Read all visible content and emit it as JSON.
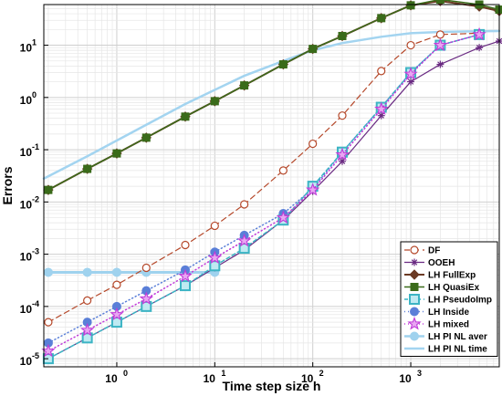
{
  "chart_data": {
    "type": "line",
    "title": "",
    "xlabel": "Time step size h",
    "ylabel": "Errors",
    "x_scale": "log",
    "y_scale": "log",
    "xlim": [
      0.18,
      8000
    ],
    "ylim": [
      7e-06,
      60
    ],
    "grid": true,
    "legend_position": "bottom-right",
    "x_ticks": [
      {
        "value": 1,
        "base": "10",
        "exp": "0"
      },
      {
        "value": 10,
        "base": "10",
        "exp": "1"
      },
      {
        "value": 100,
        "base": "10",
        "exp": "2"
      },
      {
        "value": 1000,
        "base": "10",
        "exp": "3"
      }
    ],
    "y_ticks": [
      {
        "value": 1e-05,
        "base": "10",
        "exp": "-5"
      },
      {
        "value": 0.0001,
        "base": "10",
        "exp": "-4"
      },
      {
        "value": 0.001,
        "base": "10",
        "exp": "-3"
      },
      {
        "value": 0.01,
        "base": "10",
        "exp": "-2"
      },
      {
        "value": 0.1,
        "base": "10",
        "exp": "-1"
      },
      {
        "value": 1,
        "base": "10",
        "exp": "0"
      },
      {
        "value": 10,
        "base": "10",
        "exp": "1"
      }
    ],
    "series": [
      {
        "name": "DF",
        "color": "#b5482a",
        "dash": "6,4",
        "marker": "circle-open",
        "width": 1.2,
        "x": [
          0.2,
          0.5,
          1,
          2,
          5,
          10,
          20,
          50,
          100,
          200,
          500,
          1000,
          2000,
          5000
        ],
        "y": [
          5e-05,
          0.00013,
          0.00026,
          0.00055,
          0.0015,
          0.0035,
          0.009,
          0.04,
          0.13,
          0.45,
          3.2,
          10,
          16,
          17
        ]
      },
      {
        "name": "OOEH",
        "color": "#6a2a82",
        "dash": "",
        "marker": "asterisk",
        "width": 1.2,
        "x": [
          0.2,
          0.5,
          1,
          2,
          5,
          10,
          20,
          50,
          100,
          200,
          500,
          1000,
          2000,
          5000,
          8000
        ],
        "y": [
          1e-05,
          2.5e-05,
          5e-05,
          0.0001,
          0.00025,
          0.00055,
          0.0012,
          0.0045,
          0.016,
          0.06,
          0.45,
          2,
          4.3,
          9,
          12
        ]
      },
      {
        "name": "LH FullExp",
        "color": "#6b3a24",
        "dash": "",
        "marker": "diamond",
        "width": 2,
        "x": [
          0.2,
          0.5,
          1,
          2,
          5,
          10,
          20,
          50,
          100,
          200,
          500,
          1000,
          2000,
          5000,
          8000
        ],
        "y": [
          0.017,
          0.043,
          0.085,
          0.17,
          0.43,
          0.85,
          1.7,
          4.3,
          8.5,
          15,
          33,
          58,
          70,
          55,
          45
        ]
      },
      {
        "name": "LH QuasiEx",
        "color": "#3a6b1a",
        "dash": "",
        "marker": "square",
        "width": 1.5,
        "x": [
          0.2,
          0.5,
          1,
          2,
          5,
          10,
          20,
          50,
          100,
          200,
          500,
          1000,
          2000,
          5000,
          8000
        ],
        "y": [
          0.017,
          0.043,
          0.085,
          0.17,
          0.43,
          0.85,
          1.7,
          4.3,
          8.5,
          15,
          33,
          58,
          75,
          60,
          48
        ]
      },
      {
        "name": "LH PseudoImp",
        "color": "#3cb4c4",
        "dash": "4,3",
        "marker": "square-open",
        "width": 1.5,
        "x": [
          0.2,
          0.5,
          1,
          2,
          5,
          10,
          20,
          50,
          100,
          200,
          500,
          1000,
          2000,
          5000
        ],
        "y": [
          1e-05,
          2.5e-05,
          5e-05,
          0.0001,
          0.00025,
          0.0006,
          0.0013,
          0.0045,
          0.02,
          0.09,
          0.65,
          3,
          10,
          16
        ]
      },
      {
        "name": "LH Inside",
        "color": "#5a7fd8",
        "dash": "1,3",
        "marker": "circle",
        "width": 1.5,
        "x": [
          0.2,
          0.5,
          1,
          2,
          5,
          10,
          20,
          50,
          100,
          200,
          500,
          1000,
          2000,
          5000
        ],
        "y": [
          2e-05,
          5e-05,
          0.0001,
          0.0002,
          0.0005,
          0.0011,
          0.0023,
          0.006,
          0.018,
          0.09,
          0.65,
          3,
          10,
          16
        ]
      },
      {
        "name": "LH mixed",
        "color": "#c03cd8",
        "dash": "1,3",
        "marker": "star",
        "width": 1.5,
        "x": [
          0.2,
          0.5,
          1,
          2,
          5,
          10,
          20,
          50,
          100,
          200,
          500,
          1000,
          2000,
          5000
        ],
        "y": [
          1.4e-05,
          3.5e-05,
          7e-05,
          0.00014,
          0.00038,
          0.00085,
          0.0018,
          0.005,
          0.017,
          0.08,
          0.6,
          2.8,
          10,
          16
        ]
      },
      {
        "name": "LH PI NL aver",
        "color": "#9fd2ee",
        "dash": "",
        "marker": "circle",
        "width": 3,
        "x": [
          0.2,
          0.5,
          1,
          2,
          5,
          10
        ],
        "y": [
          0.00045,
          0.00045,
          0.00045,
          0.00045,
          0.00045,
          0.00045
        ]
      },
      {
        "name": "LH PI NL time",
        "color": "#a3d4f0",
        "dash": "",
        "marker": "none",
        "width": 2.5,
        "x": [
          0.18,
          0.5,
          1,
          2,
          5,
          10,
          20,
          50,
          100,
          200,
          500,
          1000,
          2000,
          5000,
          8000
        ],
        "y": [
          0.028,
          0.075,
          0.15,
          0.3,
          0.75,
          1.4,
          2.6,
          5,
          8,
          11,
          14.5,
          17,
          18,
          18.5,
          18.7
        ]
      }
    ]
  }
}
